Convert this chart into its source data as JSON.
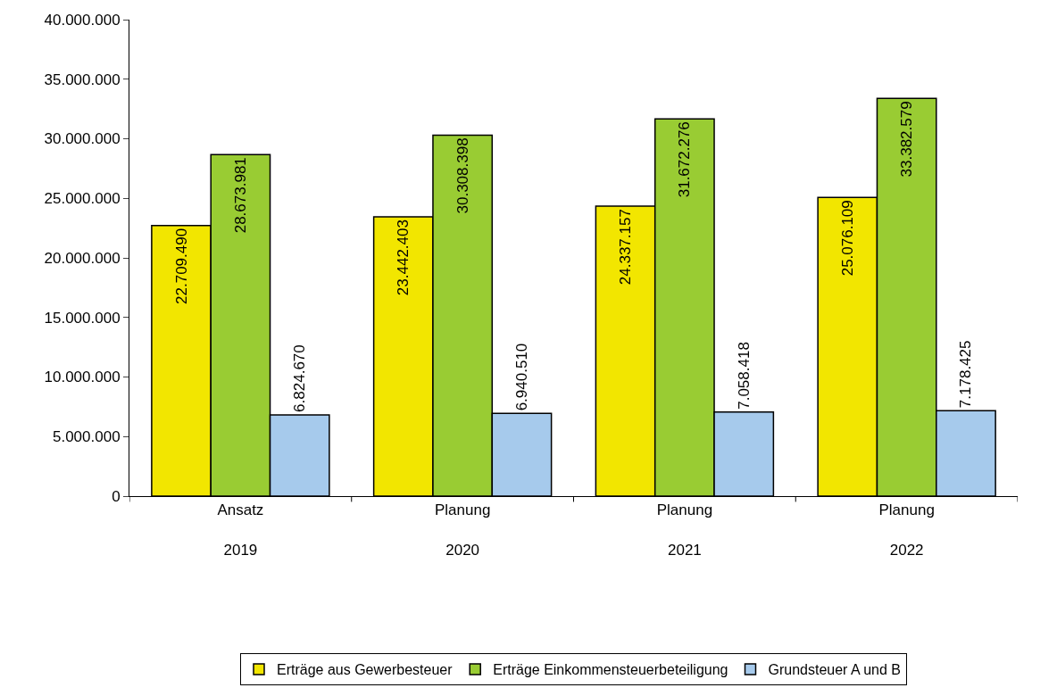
{
  "chart_data": {
    "type": "bar",
    "categories": [
      "Ansatz\n2019",
      "Planung\n2020",
      "Planung\n2021",
      "Planung\n2022"
    ],
    "series": [
      {
        "name": "Erträge aus Gewerbesteuer",
        "color": "#f2e600",
        "values": [
          22709490,
          23442403,
          24337157,
          25076109
        ],
        "value_labels": [
          "22.709.490",
          "23.442.403",
          "24.337.157",
          "25.076.109"
        ]
      },
      {
        "name": "Erträge Einkommensteuerbeteiligung",
        "color": "#99cc33",
        "values": [
          28673981,
          30308398,
          31672276,
          33382579
        ],
        "value_labels": [
          "28.673.981",
          "30.308.398",
          "31.672.276",
          "33.382.579"
        ]
      },
      {
        "name": "Grundsteuer A und B",
        "color": "#a6caec",
        "values": [
          6824670,
          6940510,
          7058418,
          7178425
        ],
        "value_labels": [
          "6.824.670",
          "6.940.510",
          "7.058.418",
          "7.178.425"
        ]
      }
    ],
    "ylim": [
      0,
      40000000
    ],
    "yticks": [
      0,
      {
        "value": 5000000,
        "label": "5.000.000"
      },
      {
        "value": 10000000,
        "label": "10.000.000"
      },
      {
        "value": 15000000,
        "label": "15.000.000"
      },
      {
        "value": 20000000,
        "label": "20.000.000"
      },
      {
        "value": 25000000,
        "label": "25.000.000"
      },
      {
        "value": 30000000,
        "label": "30.000.000"
      },
      {
        "value": 35000000,
        "label": "35.000.000"
      },
      {
        "value": 40000000,
        "label": "40.000.000"
      }
    ],
    "legend": "bottom"
  }
}
